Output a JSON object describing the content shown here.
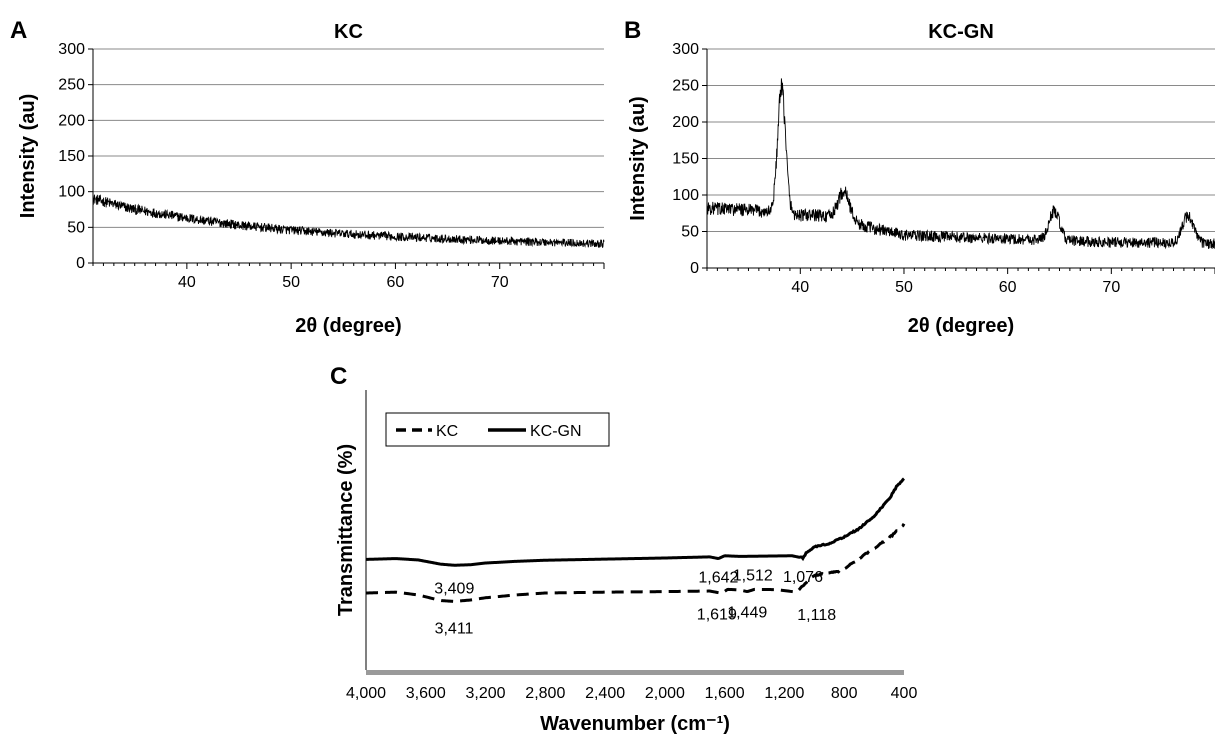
{
  "chart_data": [
    {
      "panel": "A",
      "type": "line",
      "title": "KC",
      "xlabel": "2θ (degree)",
      "ylabel": "Intensity (au)",
      "xlim": [
        31,
        80
      ],
      "ylim": [
        0,
        300
      ],
      "xticks": [
        40,
        50,
        60,
        70
      ],
      "yticks": [
        0,
        50,
        100,
        150,
        200,
        250,
        300
      ],
      "grid": "horizontal",
      "series": [
        {
          "color": "#000000",
          "baseline": [
            [
              31,
              90
            ],
            [
              35,
              75
            ],
            [
              40,
              63
            ],
            [
              45,
              53
            ],
            [
              50,
              46
            ],
            [
              55,
              41
            ],
            [
              60,
              37
            ],
            [
              65,
              34
            ],
            [
              70,
              31
            ],
            [
              75,
              29
            ],
            [
              80,
              27
            ]
          ],
          "noise_amplitude": 8
        }
      ]
    },
    {
      "panel": "B",
      "type": "line",
      "title": "KC-GN",
      "xlabel": "2θ (degree)",
      "ylabel": "Intensity (au)",
      "xlim": [
        31,
        80
      ],
      "ylim": [
        0,
        300
      ],
      "xticks": [
        40,
        50,
        60,
        70
      ],
      "yticks": [
        0,
        50,
        100,
        150,
        200,
        250,
        300
      ],
      "grid": "horizontal",
      "series": [
        {
          "color": "#000000",
          "baseline": [
            [
              31,
              82
            ],
            [
              34,
              80
            ],
            [
              36,
              78
            ],
            [
              40,
              72
            ],
            [
              42,
              72
            ],
            [
              46,
              58
            ],
            [
              50,
              45
            ],
            [
              55,
              42
            ],
            [
              60,
              40
            ],
            [
              65,
              38
            ],
            [
              70,
              35
            ],
            [
              75,
              35
            ],
            [
              80,
              33
            ]
          ],
          "peaks": [
            {
              "x": 38.2,
              "height": 170,
              "width": 0.55
            },
            {
              "x": 44.2,
              "height": 40,
              "width": 0.8
            },
            {
              "x": 64.5,
              "height": 40,
              "width": 0.7
            },
            {
              "x": 77.4,
              "height": 38,
              "width": 0.75
            }
          ],
          "noise_amplitude": 10
        }
      ]
    },
    {
      "panel": "C",
      "type": "line",
      "xlabel": "Wavenumber (cm⁻¹)",
      "ylabel": "Transmittance (%)",
      "xlim": [
        4000,
        400
      ],
      "ylim": [
        0,
        100
      ],
      "xticks": [
        4000,
        3600,
        3200,
        2800,
        2400,
        2000,
        1600,
        1200,
        800,
        400
      ],
      "xtick_labels": [
        "4,000",
        "3,600",
        "3,200",
        "2,800",
        "2,400",
        "2,000",
        "1,600",
        "1,200",
        "800",
        "400"
      ],
      "legend": {
        "position": "top-left"
      },
      "series": [
        {
          "name": "KC",
          "dash": "dashed",
          "points": [
            [
              4000,
              27.5
            ],
            [
              3800,
              27.8
            ],
            [
              3650,
              26.8
            ],
            [
              3500,
              24.8
            ],
            [
              3411,
              24.5
            ],
            [
              3300,
              25.0
            ],
            [
              3200,
              25.8
            ],
            [
              3000,
              26.8
            ],
            [
              2800,
              27.5
            ],
            [
              2400,
              27.8
            ],
            [
              2000,
              28.0
            ],
            [
              1700,
              28.2
            ],
            [
              1619,
              27.4
            ],
            [
              1580,
              28.8
            ],
            [
              1500,
              28.6
            ],
            [
              1449,
              28.0
            ],
            [
              1400,
              28.8
            ],
            [
              1250,
              28.7
            ],
            [
              1118,
              27.8
            ],
            [
              1050,
              31.5
            ],
            [
              1000,
              33.8
            ],
            [
              900,
              34.6
            ],
            [
              820,
              35.4
            ],
            [
              760,
              37.6
            ],
            [
              600,
              43.5
            ],
            [
              480,
              48.0
            ],
            [
              400,
              52.0
            ]
          ]
        },
        {
          "name": "KC-GN",
          "dash": "solid",
          "points": [
            [
              4000,
              39.5
            ],
            [
              3800,
              39.8
            ],
            [
              3650,
              39.3
            ],
            [
              3500,
              37.8
            ],
            [
              3409,
              37.4
            ],
            [
              3300,
              37.6
            ],
            [
              3200,
              38.2
            ],
            [
              3000,
              38.8
            ],
            [
              2800,
              39.2
            ],
            [
              2400,
              39.6
            ],
            [
              2000,
              40.0
            ],
            [
              1700,
              40.4
            ],
            [
              1642,
              39.8
            ],
            [
              1600,
              40.8
            ],
            [
              1512,
              40.6
            ],
            [
              1450,
              40.6
            ],
            [
              1300,
              40.7
            ],
            [
              1150,
              40.8
            ],
            [
              1076,
              40.0
            ],
            [
              1050,
              42.2
            ],
            [
              1000,
              44.0
            ],
            [
              900,
              45.2
            ],
            [
              800,
              47.5
            ],
            [
              700,
              50.5
            ],
            [
              600,
              55.0
            ],
            [
              500,
              61.0
            ],
            [
              450,
              65.5
            ],
            [
              400,
              68.5
            ]
          ]
        }
      ],
      "annotations": [
        {
          "text": "3,409",
          "x": 3409,
          "y": 37.4
        },
        {
          "text": "1,642",
          "x": 1642,
          "y": 39.8
        },
        {
          "text": "1,512",
          "x": 1512,
          "y": 40.6
        },
        {
          "text": "1,076",
          "x": 1076,
          "y": 40.0
        },
        {
          "text": "3,411",
          "x": 3411,
          "y": 24.5
        },
        {
          "text": "1,619",
          "x": 1619,
          "y": 27.4
        },
        {
          "text": "1,449",
          "x": 1449,
          "y": 28.0
        },
        {
          "text": "1,118",
          "x": 1118,
          "y": 27.8
        }
      ]
    }
  ]
}
